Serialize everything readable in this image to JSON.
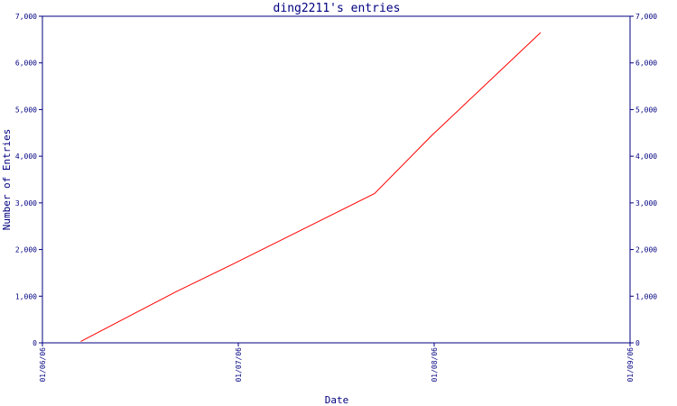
{
  "chart_data": {
    "type": "line",
    "title": "ding2211's entries",
    "xlabel": "Date",
    "ylabel": "Number of Entries",
    "x_ticks": [
      "01/06/06",
      "01/07/06",
      "01/08/06",
      "01/09/06"
    ],
    "y_ticks": [
      "0",
      "1,000",
      "2,000",
      "3,000",
      "4,000",
      "5,000",
      "6,000",
      "7,000"
    ],
    "xlim": [
      "2006-06-01",
      "2006-09-01"
    ],
    "ylim": [
      0,
      7000
    ],
    "grid": false,
    "series": [
      {
        "color": "#ff0000",
        "points": [
          {
            "x": "2006-06-07",
            "y": 30
          },
          {
            "x": "2006-06-22",
            "y": 1100
          },
          {
            "x": "2006-07-01",
            "y": 1700
          },
          {
            "x": "2006-07-23",
            "y": 3200
          },
          {
            "x": "2006-08-01",
            "y": 4450
          },
          {
            "x": "2006-08-18",
            "y": 6650
          }
        ]
      }
    ]
  },
  "colors": {
    "axis": "#000080",
    "line": "#ff0000",
    "background": "#ffffff"
  }
}
